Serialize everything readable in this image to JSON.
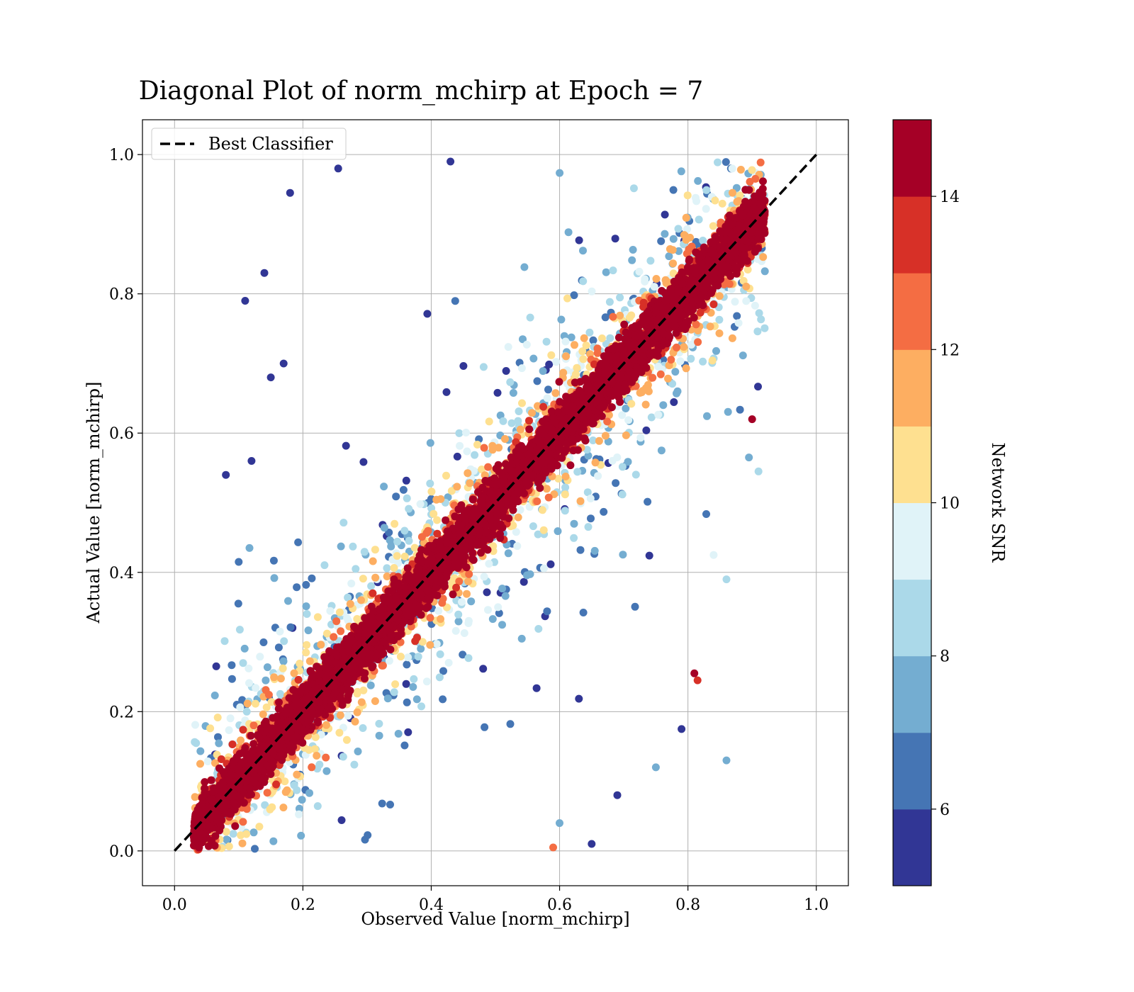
{
  "chart_data": {
    "type": "scatter",
    "title": "Diagonal Plot of norm_mchirp at Epoch = 7",
    "xlabel": "Observed Value [norm_mchirp]",
    "ylabel": "Actual Value [norm_mchirp]",
    "xlim": [
      -0.05,
      1.05
    ],
    "ylim": [
      -0.05,
      1.05
    ],
    "xticks": [
      "0.0",
      "0.2",
      "0.4",
      "0.6",
      "0.8",
      "1.0"
    ],
    "yticks": [
      "0.0",
      "0.2",
      "0.4",
      "0.6",
      "0.8",
      "1.0"
    ],
    "grid": true,
    "legend": {
      "placement": "top-left",
      "entries": [
        "Best Classifier"
      ]
    },
    "reference_line": {
      "label": "Best Classifier",
      "x": [
        0,
        1
      ],
      "y": [
        0,
        1
      ],
      "style": "dashed",
      "color": "#000000"
    },
    "colorbar": {
      "label": "Network SNR",
      "range": [
        5,
        15
      ],
      "levels": 10,
      "tick_labels": [
        "6",
        "8",
        "10",
        "12",
        "14"
      ],
      "tick_values": [
        6,
        8,
        10,
        12,
        14
      ],
      "colors": [
        "#313695",
        "#4575b4",
        "#74add1",
        "#abd9e9",
        "#e0f3f8",
        "#fee090",
        "#fdae61",
        "#f46d43",
        "#d73027",
        "#a50026"
      ]
    },
    "points": [
      {
        "x": 0.18,
        "y": 0.945,
        "snr": 5.5
      },
      {
        "x": 0.11,
        "y": 0.79,
        "snr": 5.5
      },
      {
        "x": 0.255,
        "y": 0.98,
        "snr": 5.5
      },
      {
        "x": 0.43,
        "y": 0.99,
        "snr": 5.5
      },
      {
        "x": 0.14,
        "y": 0.83,
        "snr": 5.5
      },
      {
        "x": 0.08,
        "y": 0.54,
        "snr": 5.5
      },
      {
        "x": 0.1,
        "y": 0.415,
        "snr": 6.5
      },
      {
        "x": 0.065,
        "y": 0.265,
        "snr": 5.5
      },
      {
        "x": 0.12,
        "y": 0.56,
        "snr": 5.5
      },
      {
        "x": 0.15,
        "y": 0.68,
        "snr": 5.5
      },
      {
        "x": 0.17,
        "y": 0.7,
        "snr": 5.5
      },
      {
        "x": 0.9,
        "y": 0.62,
        "snr": 14.5
      },
      {
        "x": 0.91,
        "y": 0.545,
        "snr": 8.5
      },
      {
        "x": 0.895,
        "y": 0.565,
        "snr": 7.5
      },
      {
        "x": 0.86,
        "y": 0.39,
        "snr": 8.5
      },
      {
        "x": 0.84,
        "y": 0.425,
        "snr": 9.5
      },
      {
        "x": 0.815,
        "y": 0.245,
        "snr": 13.5
      },
      {
        "x": 0.81,
        "y": 0.255,
        "snr": 14.5
      },
      {
        "x": 0.86,
        "y": 0.13,
        "snr": 7.5
      },
      {
        "x": 0.79,
        "y": 0.175,
        "snr": 5.5
      },
      {
        "x": 0.75,
        "y": 0.12,
        "snr": 7.5
      },
      {
        "x": 0.69,
        "y": 0.08,
        "snr": 5.5
      },
      {
        "x": 0.65,
        "y": 0.01,
        "snr": 5.5
      },
      {
        "x": 0.59,
        "y": 0.005,
        "snr": 12.5
      },
      {
        "x": 0.6,
        "y": 0.04,
        "snr": 7.5
      },
      {
        "x": 0.125,
        "y": 0.003,
        "snr": 6.5
      },
      {
        "x": 0.03,
        "y": 0.02,
        "snr": 15
      },
      {
        "x": 0.04,
        "y": 0.125,
        "snr": 11.5
      }
    ],
    "cloud": {
      "count": 9000,
      "x_range": [
        0.03,
        0.92
      ],
      "y_range": [
        0.0,
        0.99
      ],
      "scatter_sd_at_snr5": 0.2,
      "scatter_sd_at_snr15": 0.015
    }
  }
}
